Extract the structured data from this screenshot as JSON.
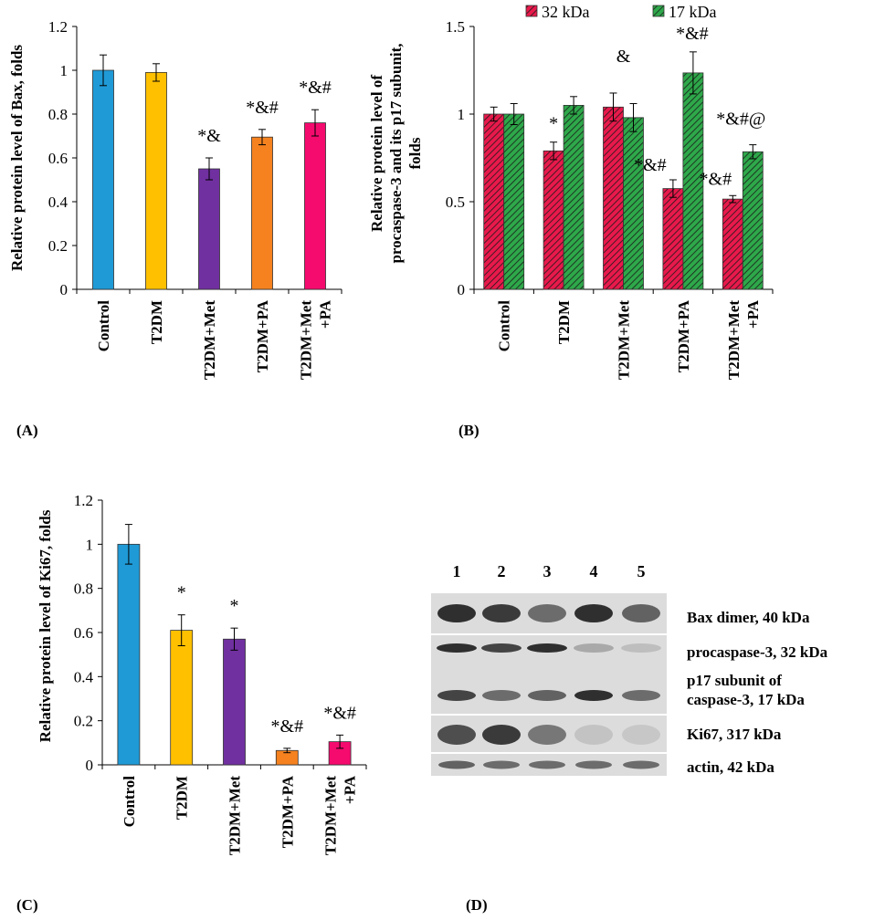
{
  "chart_data": [
    {
      "id": "A",
      "type": "bar",
      "panel_label": "(A)",
      "ylabel": "Relative protein level of Bax,  folds",
      "ylim": [
        0,
        1.2
      ],
      "yticks": [
        "0",
        "0.2",
        "0.4",
        "0.6",
        "0.8",
        "1",
        "1.2"
      ],
      "categories": [
        [
          "Control"
        ],
        [
          "T2DM"
        ],
        [
          "T2DM+Met"
        ],
        [
          "T2DM+PA"
        ],
        [
          "T2DM+Met",
          "+PA"
        ]
      ],
      "values": [
        1.0,
        0.99,
        0.55,
        0.695,
        0.76
      ],
      "errors": [
        0.07,
        0.04,
        0.05,
        0.035,
        0.06
      ],
      "colors": [
        "#1f9ad6",
        "#ffc000",
        "#7030a0",
        "#f5821f",
        "#f50a6e"
      ],
      "annotations": [
        "",
        "",
        "*&",
        "*&#",
        "*&#"
      ],
      "grid": false
    },
    {
      "id": "B",
      "type": "bar",
      "panel_label": "(B)",
      "ylabel": [
        "Relative protein level of",
        "procaspase-3 and its p17 subunit,",
        "folds"
      ],
      "ylim": [
        0,
        1.5
      ],
      "yticks": [
        "0",
        "0.5",
        "1",
        "1.5"
      ],
      "categories": [
        [
          "Control"
        ],
        [
          "T2DM"
        ],
        [
          "T2DM+Met"
        ],
        [
          "T2DM+PA"
        ],
        [
          "T2DM+Met",
          "+PA"
        ]
      ],
      "legend_position": "top",
      "series": [
        {
          "name": "32 kDa",
          "color": "#e8194b",
          "values": [
            1.0,
            0.79,
            1.04,
            0.575,
            0.515
          ],
          "errors": [
            0.04,
            0.05,
            0.08,
            0.05,
            0.02
          ],
          "annotations": [
            "",
            "*",
            "&",
            "*&#",
            "*&#"
          ]
        },
        {
          "name": "17 kDa",
          "color": "#2ea84a",
          "values": [
            1.0,
            1.05,
            0.98,
            1.235,
            0.785
          ],
          "errors": [
            0.06,
            0.05,
            0.08,
            0.12,
            0.04
          ],
          "annotations": [
            "",
            "",
            "",
            "*&#",
            "*&#@"
          ]
        }
      ],
      "grid": false
    },
    {
      "id": "C",
      "type": "bar",
      "panel_label": "(C)",
      "ylabel": "Relative protein level of Ki67,  folds",
      "ylim": [
        0,
        1.2
      ],
      "yticks": [
        "0",
        "0.2",
        "0.4",
        "0.6",
        "0.8",
        "1",
        "1.2"
      ],
      "categories": [
        [
          "Control"
        ],
        [
          "T2DM"
        ],
        [
          "T2DM+Met"
        ],
        [
          "T2DM+PA"
        ],
        [
          "T2DM+Met",
          "+PA"
        ]
      ],
      "values": [
        1.0,
        0.61,
        0.57,
        0.065,
        0.105
      ],
      "errors": [
        0.09,
        0.07,
        0.05,
        0.01,
        0.03
      ],
      "colors": [
        "#1f9ad6",
        "#ffc000",
        "#7030a0",
        "#f5821f",
        "#f50a6e"
      ],
      "annotations": [
        "",
        "*",
        "*",
        "*&#",
        "*&#"
      ],
      "grid": false
    }
  ],
  "blot": {
    "panel_label": "(D)",
    "lanes": [
      "1",
      "2",
      "3",
      "4",
      "5"
    ],
    "bands": [
      {
        "label": "Bax dimer, 40 kDa"
      },
      {
        "label": "procaspase-3, 32 kDa"
      },
      {
        "label": "p17 subunit of caspase-3, 17 kDa",
        "lines": [
          "p17 subunit of",
          "caspase-3, 17 kDa"
        ]
      },
      {
        "label": "Ki67, 317 kDa"
      },
      {
        "label": "actin, 42 kDa"
      }
    ],
    "intensities": {
      "bax": [
        0.85,
        0.8,
        0.55,
        0.85,
        0.6
      ],
      "procaspase": [
        0.85,
        0.75,
        0.85,
        0.25,
        0.15
      ],
      "p17": [
        0.75,
        0.55,
        0.6,
        0.85,
        0.55
      ],
      "ki67": [
        0.7,
        0.8,
        0.5,
        0.12,
        0.1
      ],
      "actin": [
        0.6,
        0.55,
        0.55,
        0.55,
        0.55
      ]
    }
  }
}
